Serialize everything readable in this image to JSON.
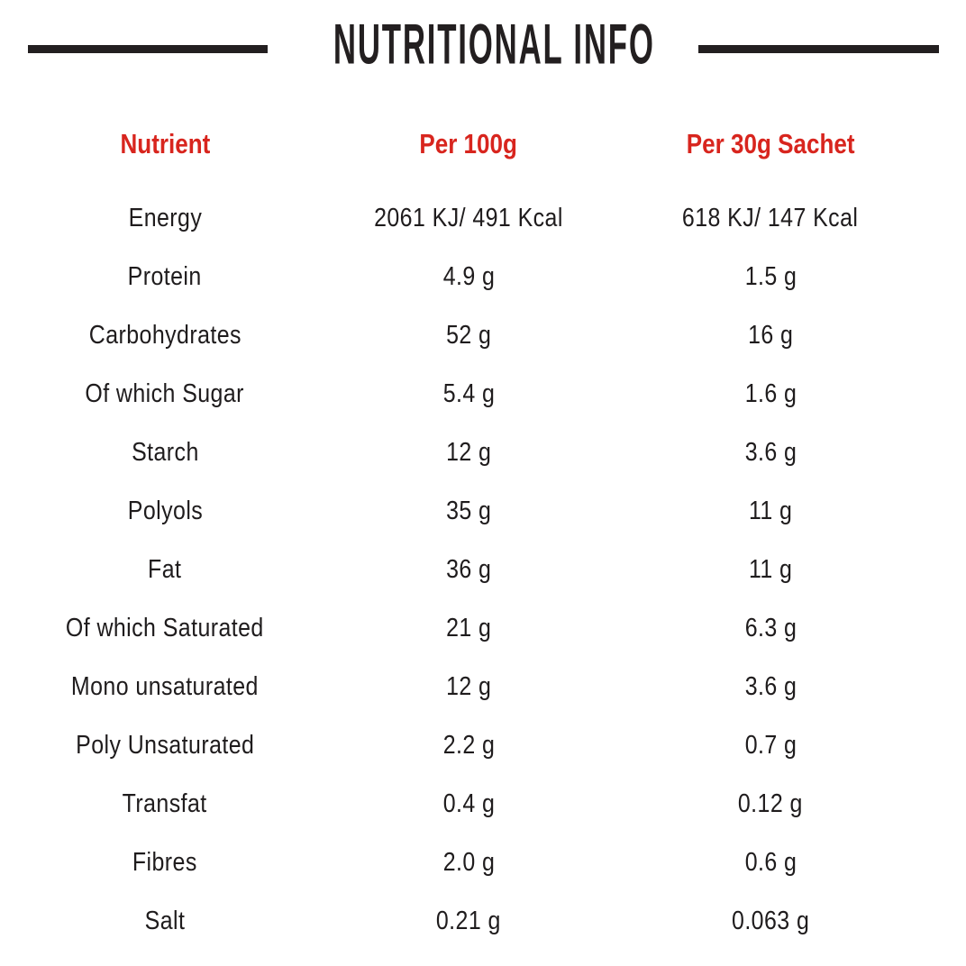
{
  "title": "NUTRITIONAL INFO",
  "colors": {
    "accent_red": "#d8251e",
    "text_black": "#231f20",
    "bar_black": "#231f20",
    "background": "#ffffff"
  },
  "table": {
    "columns": [
      "Nutrient",
      "Per 100g",
      "Per 30g Sachet"
    ],
    "rows": [
      {
        "nutrient": "Energy",
        "per_100g": "2061 KJ/ 491 Kcal",
        "per_30g": "618 KJ/ 147 Kcal"
      },
      {
        "nutrient": "Protein",
        "per_100g": "4.9 g",
        "per_30g": "1.5 g"
      },
      {
        "nutrient": "Carbohydrates",
        "per_100g": "52 g",
        "per_30g": "16 g"
      },
      {
        "nutrient": "Of which Sugar",
        "per_100g": "5.4 g",
        "per_30g": "1.6 g"
      },
      {
        "nutrient": "Starch",
        "per_100g": "12 g",
        "per_30g": "3.6 g"
      },
      {
        "nutrient": "Polyols",
        "per_100g": "35 g",
        "per_30g": "11 g"
      },
      {
        "nutrient": "Fat",
        "per_100g": "36 g",
        "per_30g": "11 g"
      },
      {
        "nutrient": "Of which Saturated",
        "per_100g": "21 g",
        "per_30g": "6.3 g"
      },
      {
        "nutrient": "Mono unsaturated",
        "per_100g": "12 g",
        "per_30g": "3.6 g"
      },
      {
        "nutrient": "Poly Unsaturated",
        "per_100g": "2.2 g",
        "per_30g": "0.7 g"
      },
      {
        "nutrient": "Transfat",
        "per_100g": "0.4 g",
        "per_30g": "0.12 g"
      },
      {
        "nutrient": "Fibres",
        "per_100g": "2.0 g",
        "per_30g": "0.6 g"
      },
      {
        "nutrient": "Salt",
        "per_100g": "0.21 g",
        "per_30g": "0.063 g"
      }
    ]
  }
}
